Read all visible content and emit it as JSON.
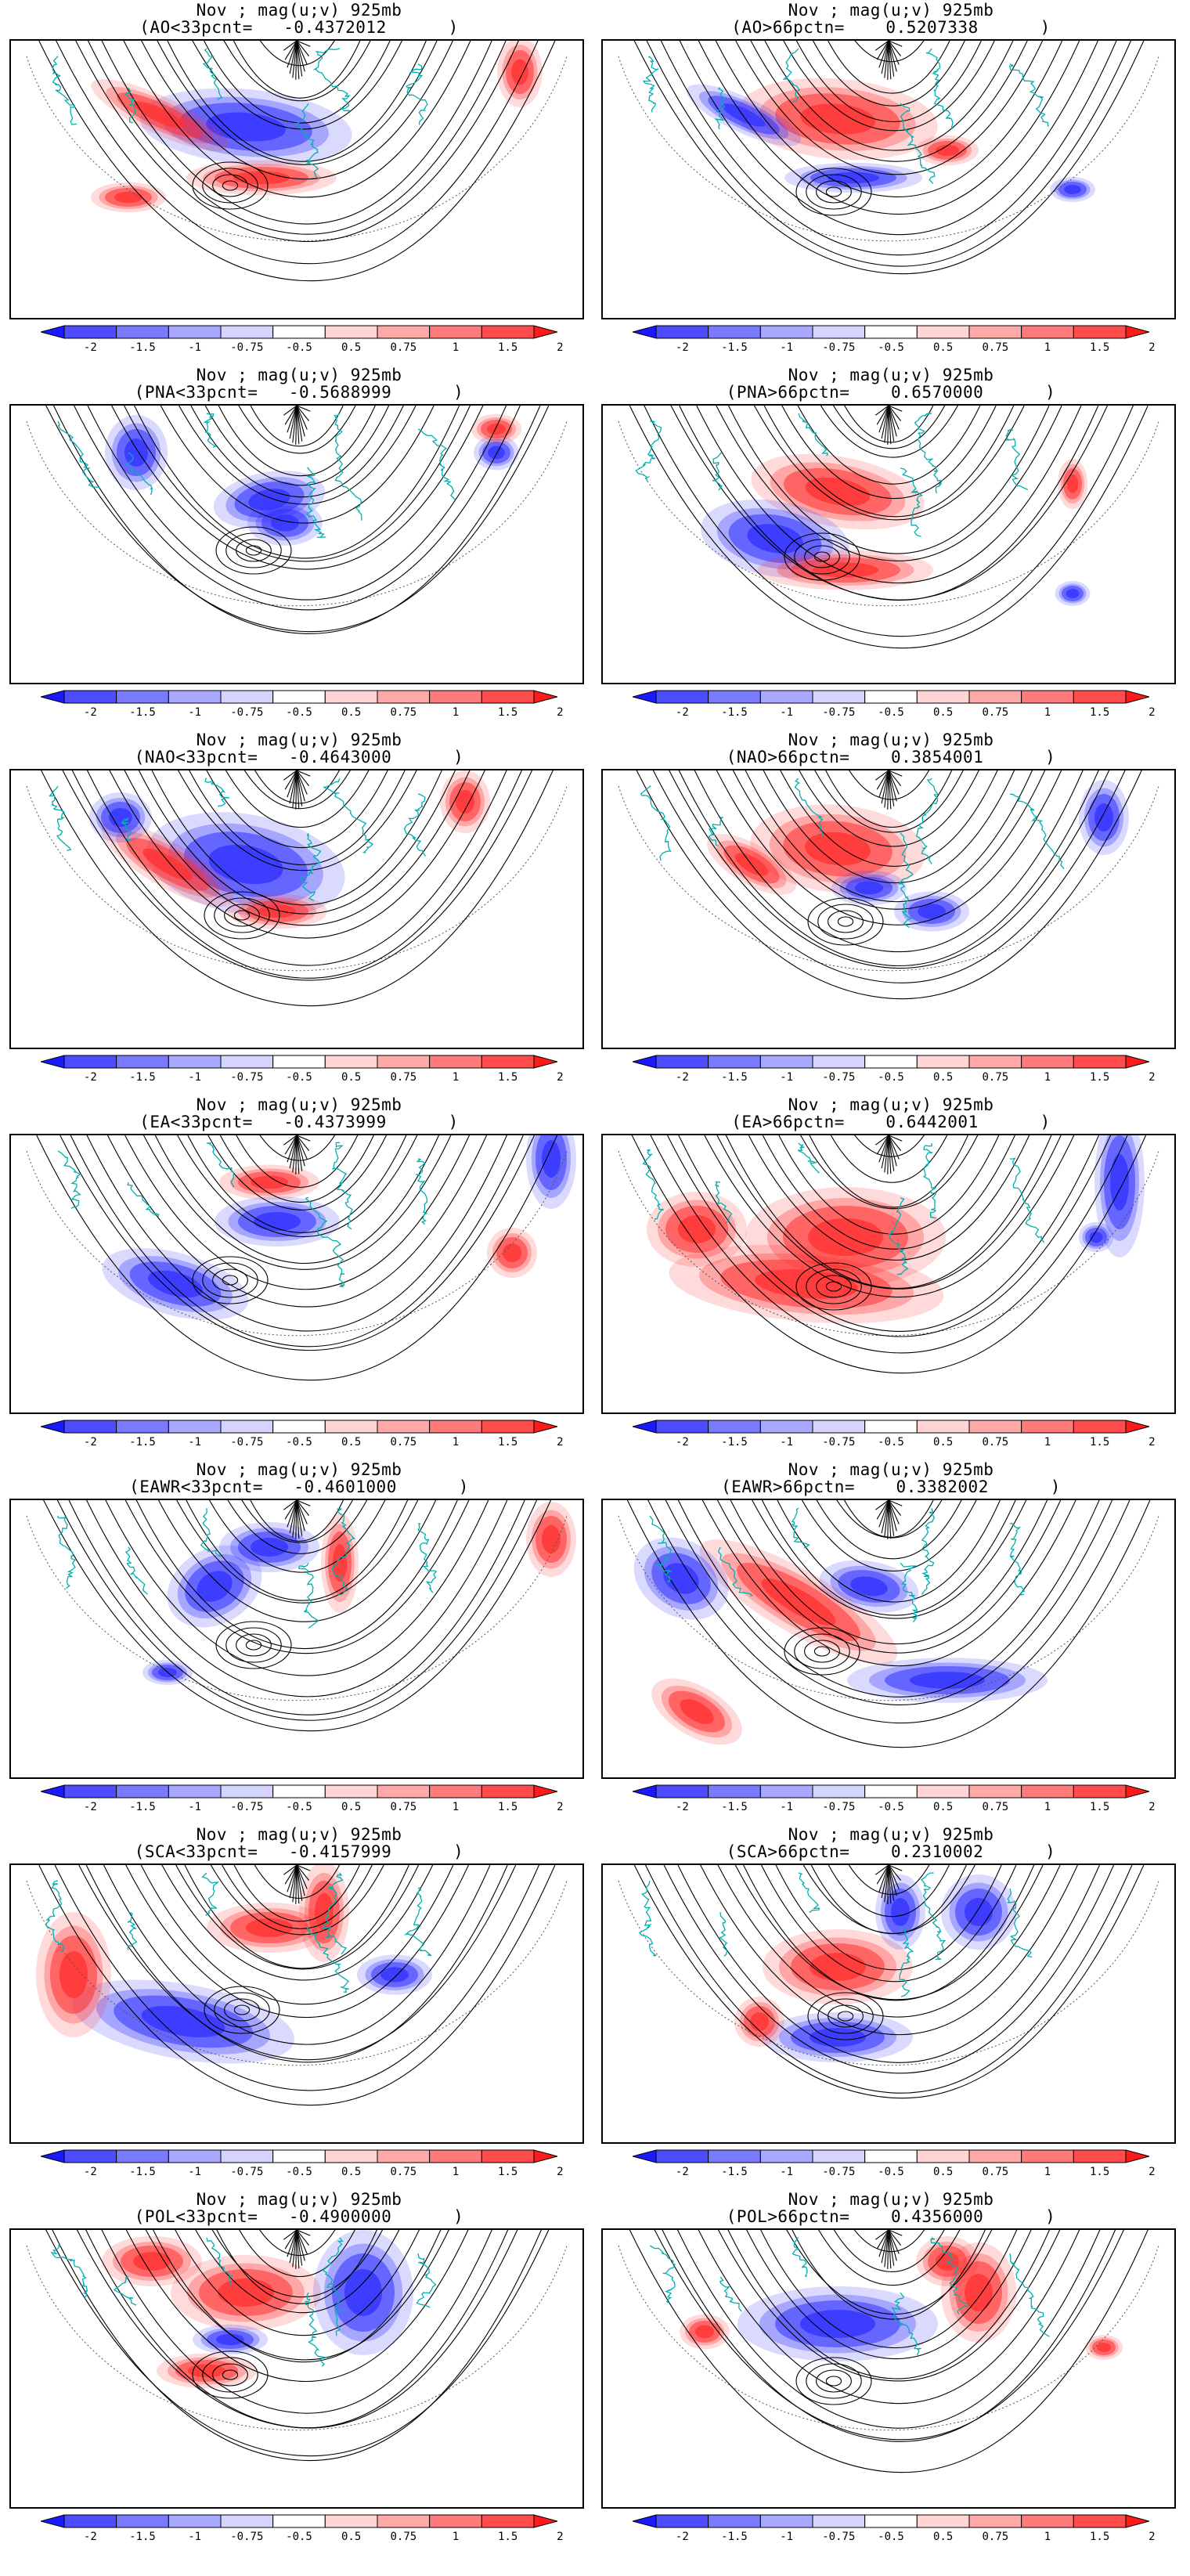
{
  "panels": [
    {
      "line1": "Nov ; mag(u;v) 925mb",
      "line2": "(AO<33pcnt=   -0.4372012      )"
    },
    {
      "line1": "Nov ; mag(u;v) 925mb",
      "line2": "(AO>66pctn=    0.5207338      )"
    },
    {
      "line1": "Nov ; mag(u;v) 925mb",
      "line2": "(PNA<33pcnt=   -0.5688999      )"
    },
    {
      "line1": "Nov ; mag(u;v) 925mb",
      "line2": "(PNA>66pctn=    0.6570000      )"
    },
    {
      "line1": "Nov ; mag(u;v) 925mb",
      "line2": "(NAO<33pcnt=   -0.4643000      )"
    },
    {
      "line1": "Nov ; mag(u;v) 925mb",
      "line2": "(NAO>66pctn=    0.3854001      )"
    },
    {
      "line1": "Nov ; mag(u;v) 925mb",
      "line2": "(EA<33pcnt=   -0.4373999      )"
    },
    {
      "line1": "Nov ; mag(u;v) 925mb",
      "line2": "(EA>66pctn=    0.6442001      )"
    },
    {
      "line1": "Nov ; mag(u;v) 925mb",
      "line2": "(EAWR<33pcnt=   -0.4601000      )"
    },
    {
      "line1": "Nov ; mag(u;v) 925mb",
      "line2": "(EAWR>66pctn=    0.3382002      )"
    },
    {
      "line1": "Nov ; mag(u;v) 925mb",
      "line2": "(SCA<33pcnt=   -0.4157999      )"
    },
    {
      "line1": "Nov ; mag(u;v) 925mb",
      "line2": "(SCA>66pctn=    0.2310002      )"
    },
    {
      "line1": "Nov ; mag(u;v) 925mb",
      "line2": "(POL<33pcnt=   -0.4900000      )"
    },
    {
      "line1": "Nov ; mag(u;v) 925mb",
      "line2": "(POL>66pctn=    0.4356000      )"
    }
  ],
  "colorbar": {
    "ticks": [
      "-2",
      "-1.5",
      "-1",
      "-0.75",
      "-0.5",
      "0.5",
      "0.75",
      "1",
      "1.5",
      "2"
    ],
    "colors": [
      "#1a1aff",
      "#4d4dff",
      "#7a7aff",
      "#a8a8ff",
      "#d4d4ff",
      "#ffffff",
      "#ffd4d4",
      "#ffa8a8",
      "#ff7a7a",
      "#ff4d4d",
      "#ff1a1a"
    ]
  },
  "colors": {
    "streamline": "#000000",
    "coastline": "#00b0b0",
    "positive": "#ff3030",
    "negative": "#3030ff"
  }
}
